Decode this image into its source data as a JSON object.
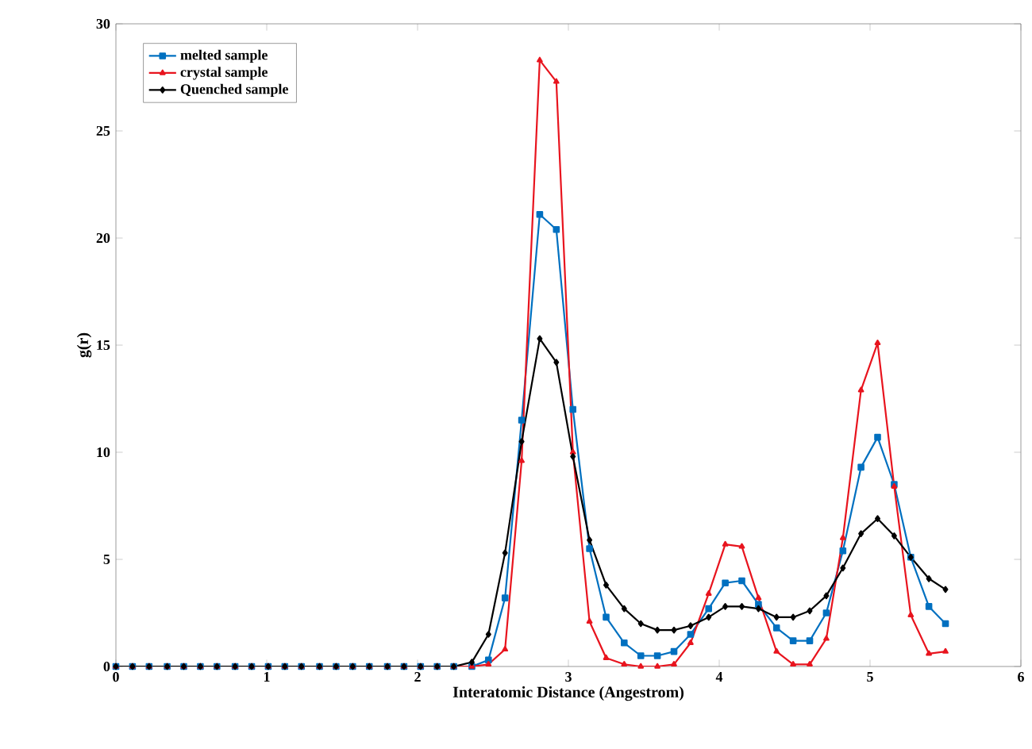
{
  "chart_data": {
    "type": "line",
    "xlabel": "Interatomic Distance (Angestrom)",
    "ylabel": "g(r)",
    "x": [
      0,
      0.11,
      0.22,
      0.34,
      0.45,
      0.56,
      0.67,
      0.79,
      0.9,
      1.01,
      1.12,
      1.23,
      1.35,
      1.46,
      1.57,
      1.68,
      1.8,
      1.91,
      2.02,
      2.13,
      2.24,
      2.36,
      2.47,
      2.58,
      2.69,
      2.81,
      2.92,
      3.03,
      3.14,
      3.25,
      3.37,
      3.48,
      3.59,
      3.7,
      3.81,
      3.93,
      4.04,
      4.15,
      4.26,
      4.38,
      4.49,
      4.6,
      4.71,
      4.82,
      4.94,
      5.05,
      5.16,
      5.27,
      5.39,
      5.5
    ],
    "series": [
      {
        "name": "melted sample",
        "color": "#0070c0",
        "marker": "square",
        "values": [
          0,
          0,
          0,
          0,
          0,
          0,
          0,
          0,
          0,
          0,
          0,
          0,
          0,
          0,
          0,
          0,
          0,
          0,
          0,
          0,
          0,
          0,
          0.3,
          3.2,
          11.5,
          21.1,
          20.4,
          12.0,
          5.5,
          2.3,
          1.1,
          0.5,
          0.5,
          0.7,
          1.5,
          2.7,
          3.9,
          4.0,
          2.9,
          1.8,
          1.2,
          1.2,
          2.5,
          5.4,
          9.3,
          10.7,
          8.5,
          5.1,
          2.8,
          2.0
        ]
      },
      {
        "name": "crystal sample",
        "color": "#e8141e",
        "marker": "triangle",
        "values": [
          0,
          0,
          0,
          0,
          0,
          0,
          0,
          0,
          0,
          0,
          0,
          0,
          0,
          0,
          0,
          0,
          0,
          0,
          0,
          0,
          0,
          0,
          0.1,
          0.8,
          9.6,
          28.3,
          27.3,
          10.0,
          2.1,
          0.4,
          0.1,
          0,
          0,
          0.1,
          1.1,
          3.4,
          5.7,
          5.6,
          3.2,
          0.7,
          0.1,
          0.1,
          1.3,
          6.0,
          12.9,
          15.1,
          8.4,
          2.4,
          0.6,
          0.7
        ]
      },
      {
        "name": "Quenched sample",
        "color": "#000000",
        "marker": "diamond",
        "values": [
          0,
          0,
          0,
          0,
          0,
          0,
          0,
          0,
          0,
          0,
          0,
          0,
          0,
          0,
          0,
          0,
          0,
          0,
          0,
          0,
          0,
          0.2,
          1.5,
          5.3,
          10.5,
          15.3,
          14.2,
          9.8,
          5.9,
          3.8,
          2.7,
          2.0,
          1.7,
          1.7,
          1.9,
          2.3,
          2.8,
          2.8,
          2.7,
          2.3,
          2.3,
          2.6,
          3.3,
          4.6,
          6.2,
          6.9,
          6.1,
          5.1,
          4.1,
          3.6
        ]
      }
    ],
    "xlim": [
      0,
      6
    ],
    "ylim": [
      0,
      30
    ],
    "xticks": [
      0,
      1,
      2,
      3,
      4,
      5,
      6
    ],
    "yticks": [
      0,
      5,
      10,
      15,
      20,
      25,
      30
    ],
    "legend": "top left",
    "grid": false,
    "line_style": "solid"
  }
}
